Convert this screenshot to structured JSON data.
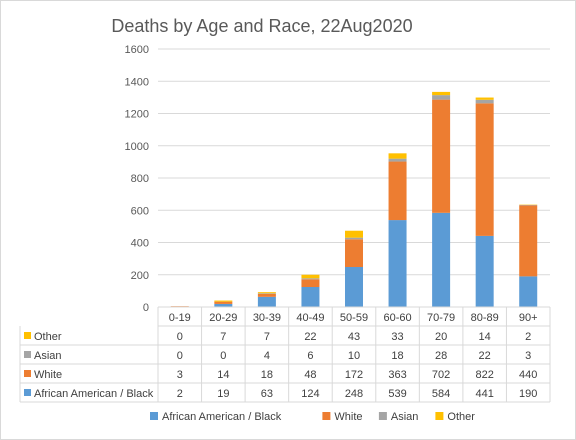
{
  "chart_data": {
    "type": "bar",
    "stacked": true,
    "title": "Deaths by Age and Race, 22Aug2020",
    "categories": [
      "0-19",
      "20-29",
      "30-39",
      "40-49",
      "50-59",
      "60-60",
      "70-79",
      "80-89",
      "90+"
    ],
    "series": [
      {
        "name": "African American / Black",
        "color": "#5b9bd5",
        "values": [
          2,
          19,
          63,
          124,
          248,
          539,
          584,
          441,
          190
        ]
      },
      {
        "name": "White",
        "color": "#ed7d31",
        "values": [
          3,
          14,
          18,
          48,
          172,
          363,
          702,
          822,
          440
        ]
      },
      {
        "name": "Asian",
        "color": "#a5a5a5",
        "values": [
          0,
          0,
          4,
          6,
          10,
          18,
          28,
          22,
          3
        ]
      },
      {
        "name": "Other",
        "color": "#ffc000",
        "values": [
          0,
          7,
          7,
          22,
          43,
          33,
          20,
          14,
          2
        ]
      }
    ],
    "ylim": [
      0,
      1600
    ],
    "yticks": [
      0,
      200,
      400,
      600,
      800,
      1000,
      1200,
      1400,
      1600
    ],
    "grid": true,
    "legend": "bottom",
    "data_table": true
  }
}
